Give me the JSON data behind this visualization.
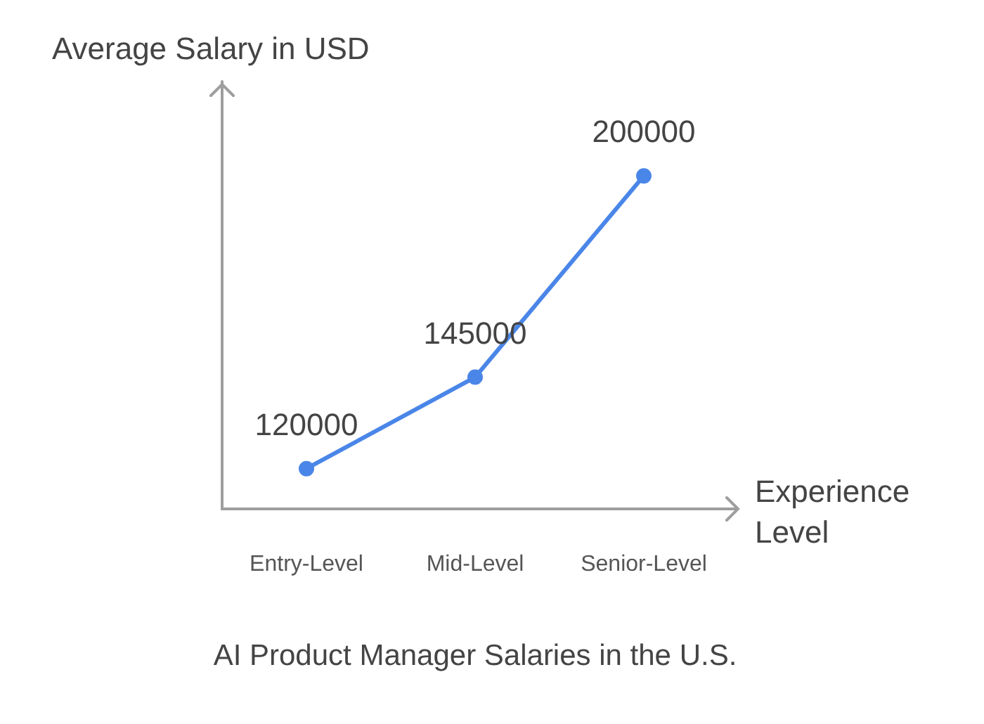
{
  "chart_data": {
    "type": "line",
    "title": "AI Product Manager Salaries in the U.S.",
    "xlabel": "Experience Level",
    "ylabel": "Average Salary in USD",
    "categories": [
      "Entry-Level",
      "Mid-Level",
      "Senior-Level"
    ],
    "series": [
      {
        "color": "#4a86e8",
        "values": [
          120000,
          145000,
          200000
        ]
      }
    ],
    "ylim": [
      109000,
      225000
    ],
    "data_labels": true,
    "tick_labels": "x",
    "marker": "circle"
  }
}
